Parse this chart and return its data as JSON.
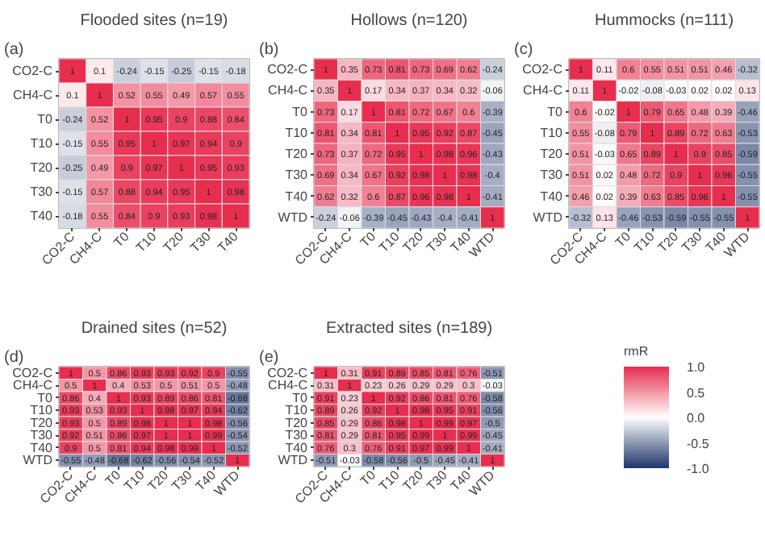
{
  "chart_data": [
    {
      "type": "heatmap",
      "title": "Flooded sites (n=19)",
      "annotations": [
        "(a)"
      ],
      "data_labels": true,
      "categories": [
        "CO2-C",
        "CH4-C",
        "T0",
        "T10",
        "T20",
        "T30",
        "T40"
      ],
      "y_categories": [
        "CO2-C",
        "CH4-C",
        "T0",
        "T10",
        "T20",
        "T30",
        "T40"
      ],
      "cells": [
        [
          1,
          0.1,
          -0.24,
          -0.15,
          -0.25,
          -0.15,
          -0.18
        ],
        [
          0.1,
          1,
          0.52,
          0.55,
          0.49,
          0.57,
          0.55
        ],
        [
          -0.24,
          0.52,
          1,
          0.95,
          0.9,
          0.88,
          0.84
        ],
        [
          -0.15,
          0.55,
          0.95,
          1,
          0.97,
          0.94,
          0.9
        ],
        [
          -0.25,
          0.49,
          0.9,
          0.97,
          1,
          0.95,
          0.93
        ],
        [
          -0.15,
          0.57,
          0.88,
          0.94,
          0.95,
          1,
          0.98
        ],
        [
          -0.18,
          0.55,
          0.84,
          0.9,
          0.93,
          0.98,
          1
        ]
      ]
    },
    {
      "type": "heatmap",
      "title": "Hollows (n=120)",
      "annotations": [
        "(b)"
      ],
      "data_labels": true,
      "categories": [
        "CO2-C",
        "CH4-C",
        "T0",
        "T10",
        "T20",
        "T30",
        "T40",
        "WTD"
      ],
      "y_categories": [
        "CO2-C",
        "CH4-C",
        "T0",
        "T10",
        "T20",
        "T30",
        "T40",
        "WTD"
      ],
      "cells": [
        [
          1,
          0.35,
          0.73,
          0.81,
          0.73,
          0.69,
          0.62,
          -0.24
        ],
        [
          0.35,
          1,
          0.17,
          0.34,
          0.37,
          0.34,
          0.32,
          -0.06
        ],
        [
          0.73,
          0.17,
          1,
          0.81,
          0.72,
          0.67,
          0.6,
          -0.39
        ],
        [
          0.81,
          0.34,
          0.81,
          1,
          0.95,
          0.92,
          0.87,
          -0.45
        ],
        [
          0.73,
          0.37,
          0.72,
          0.95,
          1,
          0.98,
          0.96,
          -0.43
        ],
        [
          0.69,
          0.34,
          0.67,
          0.92,
          0.98,
          1,
          0.98,
          -0.4
        ],
        [
          0.62,
          0.32,
          0.6,
          0.87,
          0.96,
          0.98,
          1,
          -0.41
        ],
        [
          -0.24,
          -0.06,
          -0.39,
          -0.45,
          -0.43,
          -0.4,
          -0.41,
          1
        ]
      ]
    },
    {
      "type": "heatmap",
      "title": "Hummocks (n=111)",
      "annotations": [
        "(c)"
      ],
      "data_labels": true,
      "categories": [
        "CO2-C",
        "CH4-C",
        "T0",
        "T10",
        "T20",
        "T30",
        "T40",
        "WTD"
      ],
      "y_categories": [
        "CO2-C",
        "CH4-C",
        "T0",
        "T10",
        "T20",
        "T30",
        "T40",
        "WTD"
      ],
      "cells": [
        [
          1,
          0.11,
          0.6,
          0.55,
          0.51,
          0.51,
          0.46,
          -0.32
        ],
        [
          0.11,
          1,
          -0.02,
          -0.08,
          -0.03,
          0.02,
          0.02,
          0.13
        ],
        [
          0.6,
          -0.02,
          1,
          0.79,
          0.65,
          0.48,
          0.39,
          -0.46
        ],
        [
          0.55,
          -0.08,
          0.79,
          1,
          0.89,
          0.72,
          0.63,
          -0.53
        ],
        [
          0.51,
          -0.03,
          0.65,
          0.89,
          1,
          0.9,
          0.85,
          -0.59
        ],
        [
          0.51,
          0.02,
          0.48,
          0.72,
          0.9,
          1,
          0.96,
          -0.55
        ],
        [
          0.46,
          0.02,
          0.39,
          0.63,
          0.85,
          0.96,
          1,
          -0.55
        ],
        [
          -0.32,
          0.13,
          -0.46,
          -0.53,
          -0.59,
          -0.55,
          -0.55,
          1
        ]
      ]
    },
    {
      "type": "heatmap",
      "title": "Drained sites (n=52)",
      "annotations": [
        "(d)"
      ],
      "data_labels": true,
      "categories": [
        "CO2-C",
        "CH4-C",
        "T0",
        "T10",
        "T20",
        "T30",
        "T40",
        "WTD"
      ],
      "y_categories": [
        "CO2-C",
        "CH4-C",
        "T0",
        "T10",
        "T20",
        "T30",
        "T40",
        "WTD"
      ],
      "cells": [
        [
          1,
          0.5,
          0.86,
          0.93,
          0.93,
          0.92,
          0.9,
          -0.55
        ],
        [
          0.5,
          1,
          0.4,
          0.53,
          0.5,
          0.51,
          0.5,
          -0.48
        ],
        [
          0.86,
          0.4,
          1,
          0.93,
          0.89,
          0.86,
          0.81,
          -0.68
        ],
        [
          0.93,
          0.53,
          0.93,
          1,
          0.98,
          0.97,
          0.94,
          -0.62
        ],
        [
          0.93,
          0.5,
          0.89,
          0.98,
          1,
          1,
          0.98,
          -0.56
        ],
        [
          0.92,
          0.51,
          0.86,
          0.97,
          1,
          1,
          0.99,
          -0.54
        ],
        [
          0.9,
          0.5,
          0.81,
          0.94,
          0.98,
          0.99,
          1,
          -0.52
        ],
        [
          -0.55,
          -0.48,
          -0.68,
          -0.62,
          -0.56,
          -0.54,
          -0.52,
          1
        ]
      ]
    },
    {
      "type": "heatmap",
      "title": "Extracted sites (n=189)",
      "annotations": [
        "(e)"
      ],
      "data_labels": true,
      "clim": [
        -1,
        1
      ],
      "clabel": "rmR",
      "cticks": [
        {
          "value": 1,
          "label": "1.0"
        },
        {
          "value": 0.5,
          "label": "0.5"
        },
        {
          "value": 0,
          "label": "0.0"
        },
        {
          "value": -0.5,
          "label": "-0.5"
        },
        {
          "value": -1,
          "label": "-1.0"
        }
      ],
      "categories": [
        "CO2-C",
        "CH4-C",
        "T0",
        "T10",
        "T20",
        "T30",
        "T40",
        "WTD"
      ],
      "y_categories": [
        "CO2-C",
        "CH4-C",
        "T0",
        "T10",
        "T20",
        "T30",
        "T40",
        "WTD"
      ],
      "cells": [
        [
          1,
          0.31,
          0.91,
          0.89,
          0.85,
          0.81,
          0.76,
          -0.51
        ],
        [
          0.31,
          1,
          0.23,
          0.26,
          0.29,
          0.29,
          0.3,
          -0.03
        ],
        [
          0.91,
          0.23,
          1,
          0.92,
          0.86,
          0.81,
          0.76,
          -0.58
        ],
        [
          0.89,
          0.26,
          0.92,
          1,
          0.98,
          0.95,
          0.91,
          -0.56
        ],
        [
          0.85,
          0.29,
          0.86,
          0.98,
          1,
          0.99,
          0.97,
          -0.5
        ],
        [
          0.81,
          0.29,
          0.81,
          0.95,
          0.99,
          1,
          0.99,
          -0.45
        ],
        [
          0.76,
          0.3,
          0.76,
          0.91,
          0.97,
          0.99,
          1,
          -0.41
        ],
        [
          -0.51,
          -0.03,
          -0.58,
          -0.56,
          -0.5,
          -0.45,
          -0.41,
          1
        ]
      ]
    }
  ]
}
